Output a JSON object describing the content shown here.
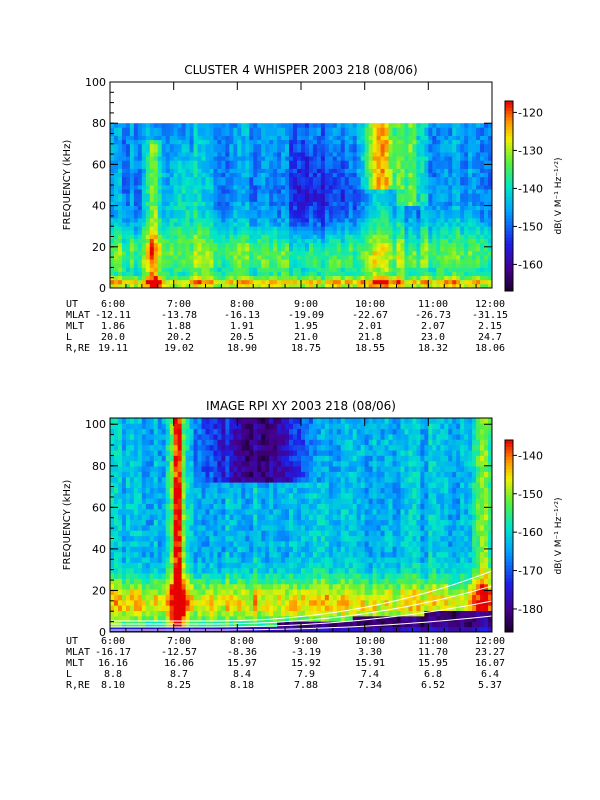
{
  "chart_data": [
    {
      "type": "heatmap",
      "title": "CLUSTER 4 WHISPER 2003 218 (08/06)",
      "ylabel": "FREQUENCY (kHz)",
      "ylim": [
        0,
        100
      ],
      "yticks": [
        0,
        20,
        40,
        60,
        80,
        100
      ],
      "xlim": [
        "6:00",
        "12:00"
      ],
      "xticks": [
        "6:00",
        "7:00",
        "8:00",
        "9:00",
        "10:00",
        "11:00",
        "12:00"
      ],
      "data_max_frequency": 80,
      "colorbar": {
        "label": "dB( V M⁻¹ Hz⁻¹ᐟ²)",
        "range": [
          -167,
          -117
        ],
        "ticks": [
          -120,
          -130,
          -140,
          -150,
          -160
        ]
      },
      "ephemeris": {
        "UT": [
          "6:00",
          "7:00",
          "8:00",
          "9:00",
          "10:00",
          "11:00",
          "12:00"
        ],
        "MLAT": [
          "-12.11",
          "-13.78",
          "-16.13",
          "-19.09",
          "-22.67",
          "-26.73",
          "-31.15"
        ],
        "MLT": [
          "1.86",
          "1.88",
          "1.91",
          "1.95",
          "2.01",
          "2.07",
          "2.15"
        ],
        "L": [
          "20.0",
          "20.2",
          "20.5",
          "21.0",
          "21.8",
          "23.0",
          "24.7"
        ],
        "R,RE": [
          "19.11",
          "19.02",
          "18.90",
          "18.75",
          "18.55",
          "18.32",
          "18.06"
        ]
      }
    },
    {
      "type": "heatmap",
      "title": "IMAGE RPI XY 2003 218 (08/06)",
      "ylabel": "FREQUENCY (kHz)",
      "ylim": [
        0,
        103
      ],
      "yticks": [
        0,
        20,
        40,
        60,
        80,
        100
      ],
      "xlim": [
        "6:00",
        "12:00"
      ],
      "xticks": [
        "6:00",
        "7:00",
        "8:00",
        "9:00",
        "10:00",
        "11:00",
        "12:00"
      ],
      "colorbar": {
        "label": "dB( V M⁻¹ Hz⁻¹ᐟ²)",
        "range": [
          -186,
          -136
        ],
        "ticks": [
          -140,
          -150,
          -160,
          -170,
          -180
        ]
      },
      "ephemeris": {
        "UT": [
          "6:00",
          "7:00",
          "8:00",
          "9:00",
          "10:00",
          "11:00",
          "12:00"
        ],
        "MLAT": [
          "-16.17",
          "-12.57",
          "-8.36",
          "-3.19",
          "3.30",
          "11.70",
          "23.27"
        ],
        "MLT": [
          "16.16",
          "16.06",
          "15.97",
          "15.92",
          "15.91",
          "15.95",
          "16.07"
        ],
        "L": [
          "8.8",
          "8.7",
          "8.4",
          "7.9",
          "7.4",
          "6.8",
          "6.4"
        ],
        "R,RE": [
          "8.10",
          "8.25",
          "8.18",
          "7.88",
          "7.34",
          "6.52",
          "5.37"
        ]
      }
    }
  ]
}
